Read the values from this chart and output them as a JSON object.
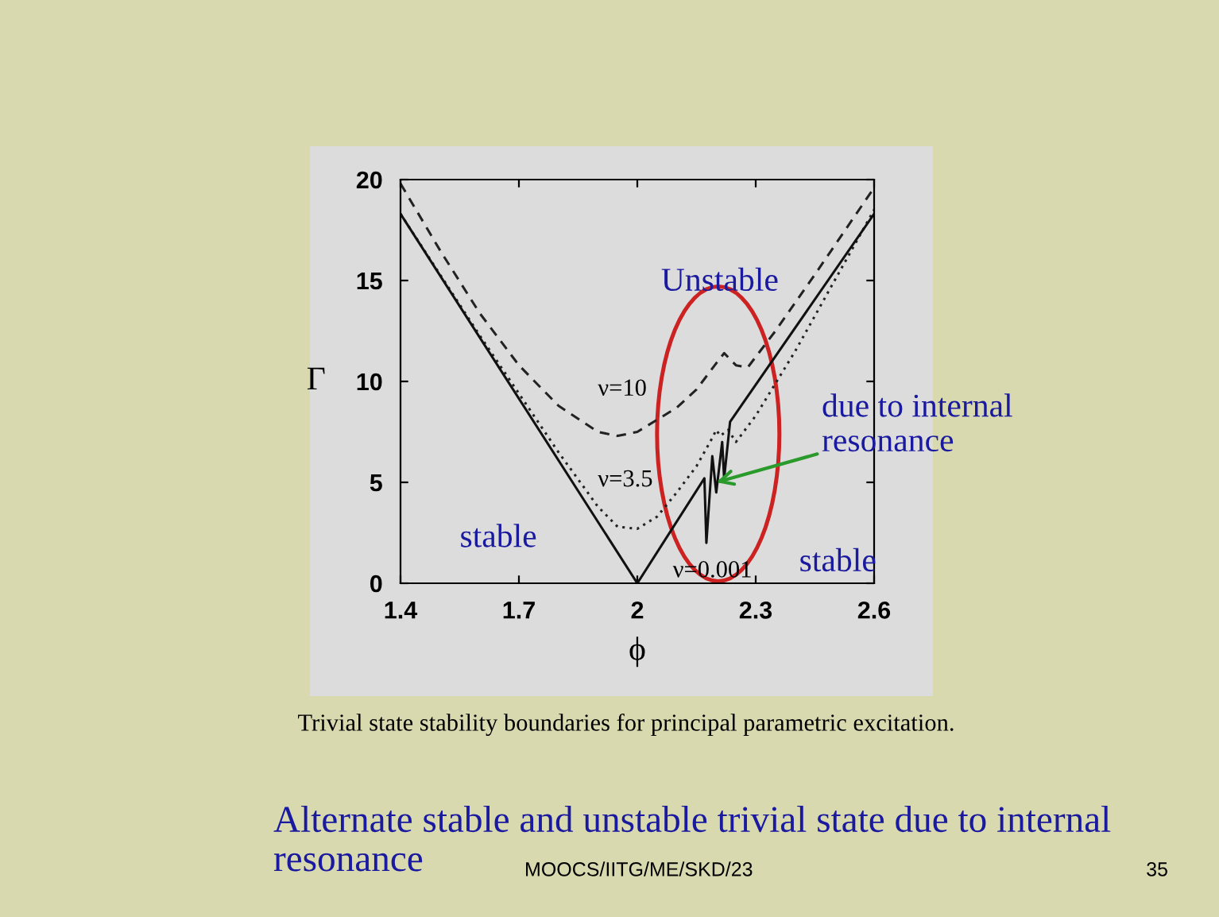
{
  "chart_data": {
    "type": "line",
    "title": "Trivial state stability boundaries for principal parametric excitation.",
    "xlabel": "ϕ",
    "ylabel": "Γ",
    "xlim": [
      1.4,
      2.6
    ],
    "ylim": [
      0,
      20
    ],
    "xticks": [
      1.4,
      1.7,
      2,
      2.3,
      2.6
    ],
    "yticks": [
      0,
      5,
      10,
      15,
      20
    ],
    "grid": false,
    "legend": false,
    "marker": "none",
    "series": [
      {
        "name": "ν=10",
        "color": "#222222",
        "line_style": "dashed",
        "x": [
          1.4,
          1.5,
          1.6,
          1.7,
          1.8,
          1.9,
          1.95,
          2.0,
          2.1,
          2.15,
          2.2,
          2.22,
          2.25,
          2.28,
          2.35,
          2.45,
          2.6
        ],
        "values": [
          19.8,
          16.5,
          13.4,
          10.8,
          8.8,
          7.5,
          7.3,
          7.5,
          8.7,
          9.6,
          10.9,
          11.4,
          10.8,
          10.7,
          12.5,
          15.3,
          19.6
        ]
      },
      {
        "name": "ν=3.5",
        "color": "#222222",
        "line_style": "dotted",
        "x": [
          1.4,
          1.5,
          1.6,
          1.7,
          1.8,
          1.9,
          1.95,
          2.0,
          2.05,
          2.1,
          2.15,
          2.19,
          2.2,
          2.21,
          2.23,
          2.25,
          2.3,
          2.4,
          2.5,
          2.6
        ],
        "values": [
          18.3,
          15.3,
          12.3,
          9.4,
          6.5,
          3.8,
          2.8,
          2.7,
          3.3,
          4.5,
          5.8,
          7.2,
          7.6,
          7.3,
          7.6,
          7.0,
          8.3,
          11.5,
          15.0,
          18.5
        ]
      },
      {
        "name": "ν=0.001",
        "color": "#111111",
        "line_style": "solid",
        "x": [
          1.4,
          2.0,
          2.17,
          2.175,
          2.19,
          2.2,
          2.215,
          2.22,
          2.235,
          2.6
        ],
        "values": [
          18.3,
          0,
          5.2,
          2.0,
          6.3,
          4.5,
          7.0,
          5.2,
          8.0,
          18.3
        ]
      }
    ],
    "annotations": [
      "Unstable",
      "stable",
      "stable",
      {
        "text": "due to internal resonance",
        "x": 2.2,
        "y": 5
      },
      "Alternate stable and unstable trivial state due to internal resonance",
      "MOOCS/IITG/ME/SKD/23",
      "35"
    ]
  }
}
